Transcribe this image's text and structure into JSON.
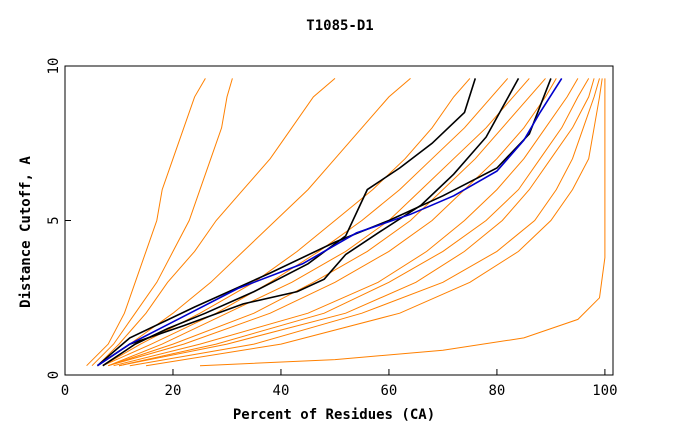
{
  "chart_data": {
    "type": "line",
    "title": "T1085-D1",
    "x_label": "Percent of Residues (CA)",
    "y_label": "Distance Cutoff, A",
    "xlim": [
      0,
      101.5
    ],
    "ylim": [
      0,
      10
    ],
    "xticks": [
      0,
      20,
      40,
      60,
      80,
      100
    ],
    "yticks": [
      0,
      5,
      10
    ],
    "series": [
      {
        "color": "#ff8000",
        "x": [
          4,
          8,
          11,
          13,
          15,
          17,
          18,
          20,
          22,
          24,
          26
        ],
        "values": [
          0.3,
          1,
          2,
          3,
          4,
          5,
          6,
          7,
          8,
          9,
          9.6
        ]
      },
      {
        "color": "#ff8000",
        "x": [
          5,
          9,
          13,
          17,
          20,
          23,
          25,
          27,
          29,
          30,
          31
        ],
        "values": [
          0.3,
          1,
          2,
          3,
          4,
          5,
          6,
          7,
          8,
          9,
          9.6
        ]
      },
      {
        "color": "#ff8000",
        "x": [
          6,
          10,
          15,
          19,
          24,
          28,
          33,
          38,
          42,
          46,
          50
        ],
        "values": [
          0.3,
          1,
          2,
          3,
          4,
          5,
          6,
          7,
          8,
          9,
          9.6
        ]
      },
      {
        "color": "#ff8000",
        "x": [
          6,
          12,
          20,
          27,
          33,
          39,
          45,
          50,
          55,
          60,
          64
        ],
        "values": [
          0.3,
          1,
          2,
          3,
          4,
          5,
          6,
          7,
          8,
          9,
          9.6
        ]
      },
      {
        "color": "#ff8000",
        "x": [
          7,
          14,
          25,
          35,
          43,
          50,
          57,
          63,
          68,
          72,
          75
        ],
        "values": [
          0.3,
          1,
          2,
          3,
          4,
          5,
          6,
          7,
          8,
          9,
          9.6
        ]
      },
      {
        "color": "#ff8000",
        "x": [
          7,
          16,
          28,
          38,
          47,
          55,
          62,
          68,
          74,
          79,
          82
        ],
        "values": [
          0.3,
          1,
          2,
          3,
          4,
          5,
          6,
          7,
          8,
          9,
          9.6
        ]
      },
      {
        "color": "#ff8000",
        "x": [
          8,
          18,
          30,
          42,
          52,
          60,
          66,
          72,
          78,
          83,
          86
        ],
        "values": [
          0.3,
          1,
          2,
          3,
          4,
          5,
          6,
          7,
          8,
          9,
          9.6
        ]
      },
      {
        "color": "#ff8000",
        "x": [
          8,
          20,
          35,
          46,
          56,
          64,
          70,
          76,
          81,
          86,
          89
        ],
        "values": [
          0.3,
          1,
          2,
          3,
          4,
          5,
          6,
          7,
          8,
          9,
          9.6
        ]
      },
      {
        "color": "#ff8000",
        "x": [
          8,
          22,
          38,
          50,
          60,
          68,
          74,
          80,
          85,
          89,
          91
        ],
        "values": [
          0.3,
          1,
          2,
          3,
          4,
          5,
          6,
          7,
          8,
          9,
          9.6
        ]
      },
      {
        "color": "#ff8000",
        "x": [
          9,
          25,
          45,
          58,
          67,
          74,
          80,
          85,
          89,
          93,
          95
        ],
        "values": [
          0.3,
          1,
          2,
          3,
          4,
          5,
          6,
          7,
          8,
          9,
          9.6
        ]
      },
      {
        "color": "#ff8000",
        "x": [
          10,
          28,
          48,
          60,
          70,
          78,
          84,
          88,
          92,
          95,
          97
        ],
        "values": [
          0.3,
          1,
          2,
          3,
          4,
          5,
          6,
          7,
          8,
          9,
          9.6
        ]
      },
      {
        "color": "#ff8000",
        "x": [
          10,
          30,
          52,
          65,
          74,
          81,
          86,
          90,
          94,
          97,
          98
        ],
        "values": [
          0.3,
          1,
          2,
          3,
          4,
          5,
          6,
          7,
          8,
          9,
          9.6
        ]
      },
      {
        "color": "#ff8000",
        "x": [
          12,
          35,
          55,
          70,
          80,
          87,
          91,
          94,
          96,
          98,
          99
        ],
        "values": [
          0.3,
          1,
          2,
          3,
          4,
          5,
          6,
          7,
          8,
          9,
          9.6
        ]
      },
      {
        "color": "#ff8000",
        "x": [
          15,
          40,
          62,
          75,
          84,
          90,
          94,
          97,
          98,
          99,
          99.5
        ],
        "values": [
          0.3,
          1,
          2,
          3,
          4,
          5,
          6,
          7,
          8,
          9,
          9.6
        ]
      },
      {
        "color": "#ff8000",
        "x": [
          25,
          50,
          70,
          85,
          95,
          99,
          100,
          100
        ],
        "values": [
          0.3,
          0.5,
          0.8,
          1.2,
          1.8,
          2.5,
          3.8,
          9.6
        ]
      },
      {
        "color": "#000000",
        "x": [
          7,
          13,
          19,
          26,
          35,
          45,
          52,
          56,
          62,
          68,
          74,
          76
        ],
        "values": [
          0.3,
          1,
          1.5,
          2,
          2.7,
          3.6,
          4.5,
          6,
          6.7,
          7.5,
          8.5,
          9.6
        ]
      },
      {
        "color": "#000000",
        "x": [
          6,
          12,
          22,
          33,
          43,
          48,
          52,
          58,
          66,
          72,
          78,
          84
        ],
        "values": [
          0.3,
          1,
          1.6,
          2.3,
          2.7,
          3.1,
          3.9,
          4.6,
          5.5,
          6.5,
          7.7,
          9.6
        ]
      },
      {
        "color": "#000000",
        "x": [
          6,
          12,
          24,
          38,
          50,
          60,
          70,
          80,
          86,
          90
        ],
        "values": [
          0.3,
          1.2,
          2.2,
          3.3,
          4.3,
          5,
          5.8,
          6.7,
          7.8,
          9.6
        ]
      },
      {
        "color": "#0000cc",
        "x": [
          6,
          12,
          22,
          32,
          44,
          54,
          64,
          72,
          80,
          85,
          88,
          92
        ],
        "values": [
          0.3,
          1,
          1.9,
          2.8,
          3.6,
          4.6,
          5.2,
          5.8,
          6.6,
          7.6,
          8.5,
          9.6
        ]
      }
    ]
  }
}
